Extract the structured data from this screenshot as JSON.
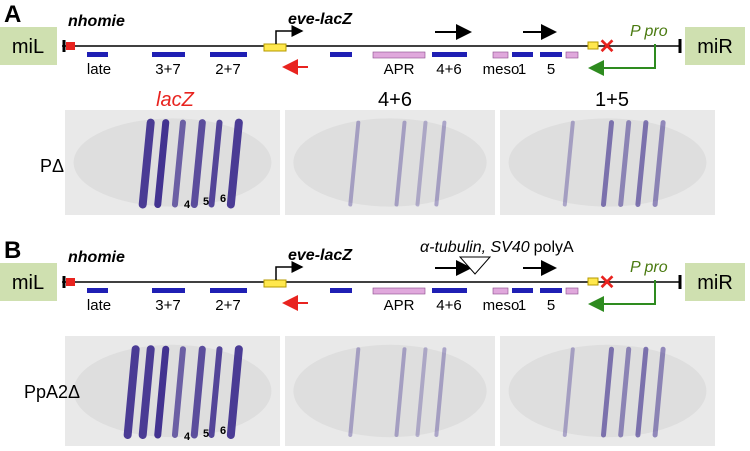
{
  "panels": [
    {
      "label": "A",
      "insulator_left": "miL",
      "insulator_right": "miR",
      "nhomie": "nhomie",
      "reporter": "eve-lacZ",
      "promoter": "P pro",
      "elements": [
        "late",
        "3+7",
        "2+7",
        "APR",
        "4+6",
        "meso",
        "1",
        "5"
      ],
      "column_headers": [
        "lacZ",
        "4+6",
        "1+5"
      ],
      "row_label": "PΔ",
      "stripe_numbers": [
        "4",
        "5",
        "6"
      ]
    },
    {
      "label": "B",
      "insulator_left": "miL",
      "insulator_right": "miR",
      "nhomie": "nhomie",
      "reporter": "eve-lacZ",
      "promoter": "P pro",
      "insert_italic": "α-tubulin, SV40",
      "insert_plain": "polyA",
      "elements": [
        "late",
        "3+7",
        "2+7",
        "APR",
        "4+6",
        "meso",
        "1",
        "5"
      ],
      "row_label": "PpA2Δ",
      "stripe_numbers": [
        "4",
        "5",
        "6"
      ]
    }
  ]
}
